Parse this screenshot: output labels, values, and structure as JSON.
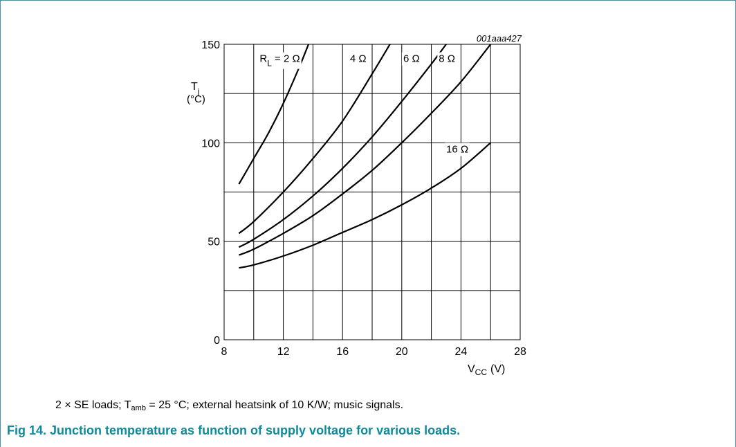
{
  "chart_data": {
    "type": "line",
    "code": "001aaa427",
    "ylabel_sym": "T",
    "ylabel_sub": "j",
    "ylabel_unit": "(°C)",
    "xlabel_sym": "V",
    "xlabel_sub": "CC",
    "xlabel_unit": "(V)",
    "xlim": [
      8,
      28
    ],
    "ylim": [
      0,
      150
    ],
    "xticks": [
      8,
      12,
      16,
      20,
      24,
      28
    ],
    "yticks": [
      0,
      50,
      100,
      150
    ],
    "x_grid": [
      8,
      10,
      12,
      14,
      16,
      18,
      20,
      22,
      24,
      26,
      28
    ],
    "y_grid": [
      0,
      25,
      50,
      75,
      100,
      125,
      150
    ],
    "grid": true,
    "series": [
      {
        "label_pre": "R",
        "label_sub": "L",
        "label_post": " = 2 Ω",
        "label_at": [
          10.4,
          141
        ],
        "points": [
          [
            9,
            79
          ],
          [
            10,
            92
          ],
          [
            11,
            105
          ],
          [
            12,
            120
          ],
          [
            13,
            137
          ],
          [
            13.7,
            150
          ]
        ]
      },
      {
        "label_pre": "",
        "label_sub": "",
        "label_post": "4 Ω",
        "label_at": [
          16.5,
          141
        ],
        "points": [
          [
            9,
            54
          ],
          [
            10,
            60
          ],
          [
            12,
            75
          ],
          [
            14,
            92
          ],
          [
            16,
            111
          ],
          [
            18,
            135
          ],
          [
            19.2,
            150
          ]
        ]
      },
      {
        "label_pre": "",
        "label_sub": "",
        "label_post": "6 Ω",
        "label_at": [
          20.1,
          141
        ],
        "points": [
          [
            9,
            47
          ],
          [
            10,
            51
          ],
          [
            12,
            61
          ],
          [
            14,
            73
          ],
          [
            16,
            87
          ],
          [
            18,
            103
          ],
          [
            20,
            121
          ],
          [
            22,
            140
          ],
          [
            23,
            150
          ]
        ]
      },
      {
        "label_pre": "",
        "label_sub": "",
        "label_post": "8 Ω",
        "label_at": [
          22.5,
          141
        ],
        "points": [
          [
            9,
            43
          ],
          [
            10,
            46
          ],
          [
            12,
            54
          ],
          [
            14,
            63
          ],
          [
            16,
            74
          ],
          [
            18,
            86
          ],
          [
            20,
            100
          ],
          [
            22,
            115
          ],
          [
            24,
            131
          ],
          [
            26,
            150
          ]
        ]
      },
      {
        "label_pre": "",
        "label_sub": "",
        "label_post": "16 Ω",
        "label_at": [
          23,
          95
        ],
        "points": [
          [
            9,
            36.5
          ],
          [
            10,
            38
          ],
          [
            12,
            42.5
          ],
          [
            14,
            48
          ],
          [
            16,
            54.5
          ],
          [
            18,
            61
          ],
          [
            20,
            68.5
          ],
          [
            22,
            77
          ],
          [
            24,
            87
          ],
          [
            26,
            100
          ]
        ]
      }
    ]
  },
  "footnote": {
    "prefix": "2 × SE loads; T",
    "sub": "amb",
    "suffix": " = 25 °C; external heatsink of 10 K/W; music signals."
  },
  "caption": {
    "text": "Fig 14.  Junction temperature as function of supply voltage for various loads."
  }
}
